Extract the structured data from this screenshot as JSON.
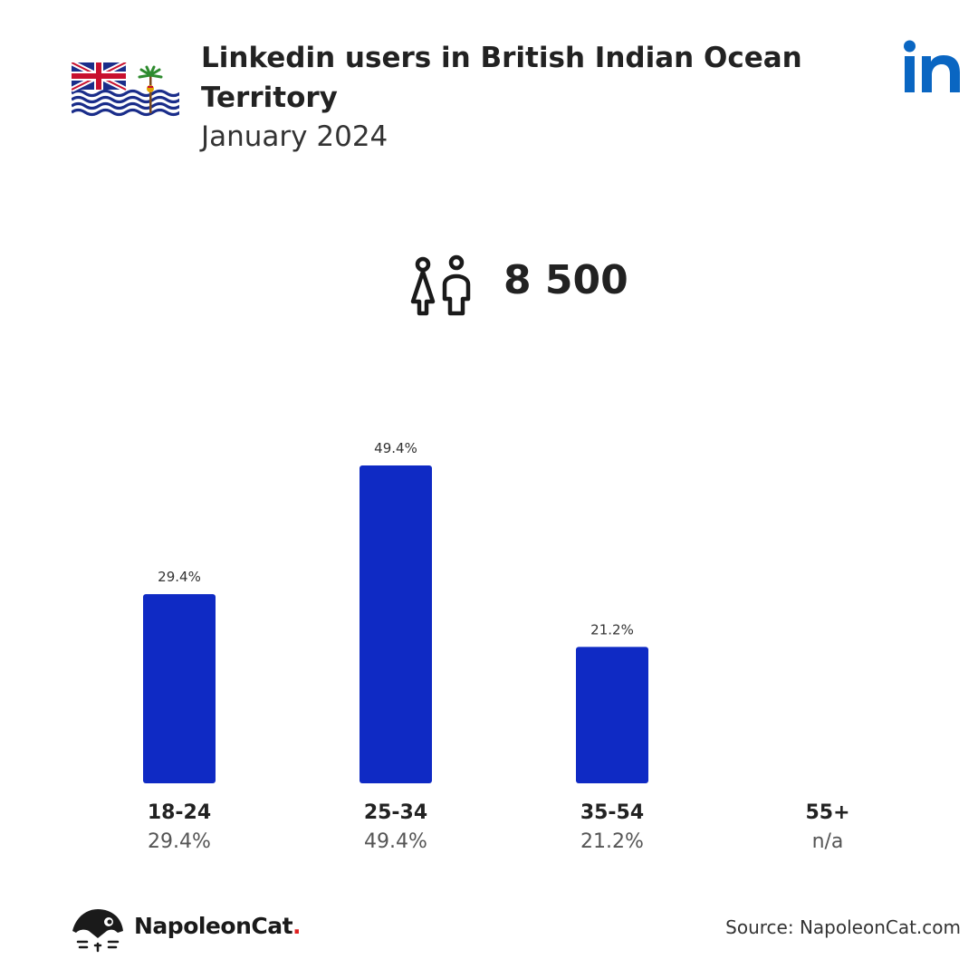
{
  "header": {
    "title": "Linkedin users in British Indian Ocean Territory",
    "subtitle": "January 2024",
    "flag_icon": "flag-british-indian-ocean-territory",
    "brand_icon": "linkedin-icon",
    "brand_color": "#0a66c2"
  },
  "summary": {
    "users_icon": "users-icon",
    "total_users": "8 500"
  },
  "chart_data": {
    "type": "bar",
    "categories": [
      "18-24",
      "25-34",
      "35-54",
      "55+"
    ],
    "values": [
      29.4,
      49.4,
      21.2,
      null
    ],
    "data_labels": [
      "29.4%",
      "49.4%",
      "21.2%",
      "n/a"
    ],
    "unit": "%",
    "bar_color": "#0f2ac4",
    "ylim": [
      0,
      50
    ],
    "grid": false,
    "legend": "none"
  },
  "footer": {
    "brand_name": "NapoleonCat",
    "brand_dot": ".",
    "source": "Source: NapoleonCat.com"
  }
}
